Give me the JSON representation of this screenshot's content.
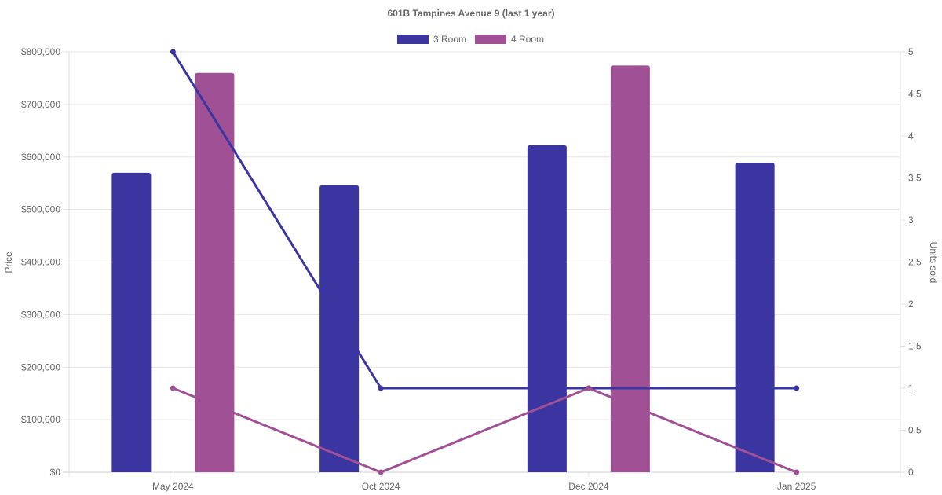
{
  "chart_data": {
    "type": "bar",
    "title": "601B Tampines Avenue 9 (last 1 year)",
    "categories": [
      "May 2024",
      "Oct 2024",
      "Dec 2024",
      "Jan 2025"
    ],
    "y_left": {
      "label": "Price",
      "ylim": [
        0,
        800000
      ],
      "ticks": [
        "$0",
        "$100,000",
        "$200,000",
        "$300,000",
        "$400,000",
        "$500,000",
        "$600,000",
        "$700,000",
        "$800,000"
      ]
    },
    "y_right": {
      "label": "Units sold",
      "ylim": [
        0,
        5
      ],
      "ticks": [
        "0",
        "0.5",
        "1",
        "1.5",
        "2",
        "2.5",
        "3",
        "3.5",
        "4",
        "4.5",
        "5"
      ]
    },
    "legend": {
      "position": "top",
      "items": [
        {
          "name": "3 Room",
          "color": "#3a35a0"
        },
        {
          "name": "4 Room",
          "color": "#a05095"
        }
      ]
    },
    "bars": [
      {
        "name": "3 Room",
        "color": "#3a35a0",
        "values": [
          570000,
          546000,
          622000,
          589000
        ]
      },
      {
        "name": "4 Room",
        "color": "#a05095",
        "values": [
          760000,
          null,
          774000,
          null
        ]
      }
    ],
    "lines": [
      {
        "name": "3 Room",
        "color": "#3a35a0",
        "values": [
          5,
          1,
          1,
          1
        ]
      },
      {
        "name": "4 Room",
        "color": "#a05095",
        "values": [
          1,
          0,
          1,
          0
        ]
      }
    ],
    "grid": true
  }
}
